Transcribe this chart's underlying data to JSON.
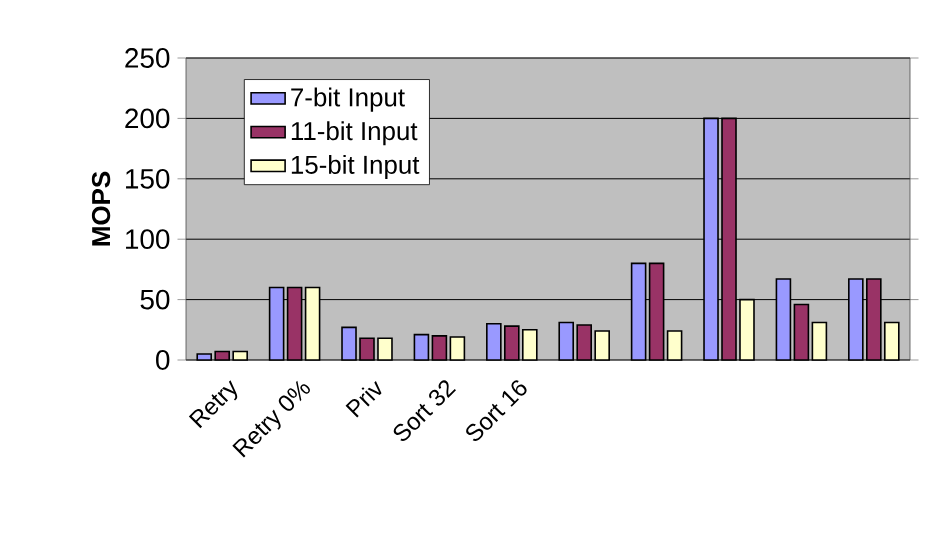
{
  "chart_data": {
    "type": "bar",
    "ylabel": "MOPS",
    "categories": [
      "Retry",
      "Retry 0%",
      "Priv",
      "Sort 32",
      "Sort 16",
      null,
      null,
      null,
      null,
      null
    ],
    "series": [
      {
        "name": "7-bit Input",
        "color": "#9999ff",
        "values": [
          5,
          60,
          27,
          21,
          30,
          31,
          80,
          200,
          67,
          67
        ]
      },
      {
        "name": "11-bit Input",
        "color": "#993366",
        "values": [
          7,
          60,
          18,
          20,
          28,
          29,
          80,
          200,
          46,
          67
        ]
      },
      {
        "name": "15-bit Input",
        "color": "#ffffcc",
        "values": [
          7,
          60,
          18,
          19,
          25,
          24,
          24,
          50,
          31,
          31
        ]
      }
    ],
    "ylim": [
      0,
      250
    ],
    "yticks": [
      0,
      50,
      100,
      150,
      200,
      250
    ],
    "grid": "y",
    "legend": "top left"
  }
}
